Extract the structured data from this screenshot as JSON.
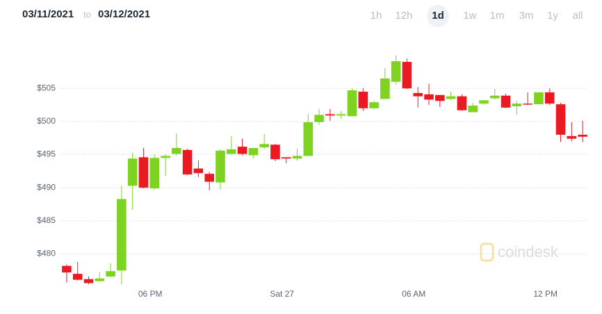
{
  "header": {
    "from": "03/11/2021",
    "to_word": "to",
    "to": "03/12/2021",
    "ranges": [
      "1h",
      "12h",
      "1d",
      "1w",
      "1m",
      "3m",
      "1y",
      "all"
    ],
    "selected": "1d"
  },
  "chart_data": {
    "type": "candlestick",
    "watermark": "coindesk",
    "categories": [
      null,
      null,
      null,
      null,
      null,
      null,
      null,
      null,
      "06 PM",
      null,
      null,
      null,
      null,
      null,
      null,
      null,
      null,
      null,
      null,
      null,
      "Sat 27",
      null,
      null,
      null,
      null,
      null,
      null,
      null,
      null,
      null,
      null,
      null,
      "06 AM",
      null,
      null,
      null,
      null,
      null,
      null,
      null,
      null,
      null,
      null,
      null,
      "12 PM",
      null,
      null,
      null
    ],
    "open": [
      478.2,
      477.0,
      476.2,
      475.9,
      476.6,
      477.5,
      490.3,
      494.6,
      489.9,
      494.5,
      495.1,
      495.7,
      492.9,
      492.1,
      490.8,
      495.1,
      496.2,
      494.9,
      496.1,
      496.5,
      494.6,
      494.4,
      494.8,
      499.9,
      501.1,
      500.9,
      500.8,
      504.5,
      502.0,
      503.4,
      506.0,
      509.0,
      504.3,
      504.1,
      504.0,
      503.4,
      503.8,
      501.4,
      502.7,
      503.5,
      503.9,
      502.3,
      502.7,
      502.6,
      504.4,
      502.6,
      497.8,
      498.0
    ],
    "high": [
      478.4,
      478.8,
      476.6,
      477.3,
      478.6,
      490.3,
      495.3,
      496.0,
      495.0,
      495.1,
      498.2,
      495.9,
      494.1,
      492.4,
      495.8,
      497.8,
      497.4,
      496.0,
      498.1,
      496.6,
      494.6,
      495.9,
      501.1,
      501.9,
      501.9,
      501.6,
      505.0,
      505.0,
      503.1,
      508.1,
      510.0,
      509.5,
      505.2,
      505.7,
      504.0,
      504.5,
      504.1,
      502.8,
      503.2,
      504.9,
      504.2,
      503.1,
      504.4,
      504.4,
      505.0,
      502.8,
      499.9,
      500.1
    ],
    "low": [
      475.7,
      476.0,
      475.4,
      475.8,
      476.5,
      475.4,
      486.7,
      489.9,
      489.7,
      491.8,
      494.9,
      491.9,
      491.6,
      489.6,
      489.7,
      495.0,
      494.9,
      494.4,
      495.8,
      494.0,
      493.7,
      494.1,
      494.8,
      499.5,
      500.1,
      500.4,
      500.8,
      501.6,
      501.9,
      503.4,
      505.6,
      504.9,
      502.1,
      502.5,
      502.2,
      503.2,
      501.6,
      501.4,
      502.5,
      503.3,
      502.0,
      501.0,
      502.5,
      502.6,
      502.5,
      496.9,
      497.0,
      496.9
    ],
    "close": [
      477.2,
      476.1,
      475.6,
      476.3,
      477.4,
      488.3,
      494.4,
      490.0,
      494.5,
      494.8,
      496.0,
      492.0,
      492.2,
      490.9,
      495.6,
      495.8,
      495.1,
      496.0,
      496.6,
      494.3,
      494.4,
      494.8,
      499.9,
      501.0,
      500.9,
      501.1,
      504.7,
      502.0,
      502.9,
      506.5,
      509.1,
      505.0,
      503.8,
      503.3,
      503.1,
      503.8,
      501.7,
      502.4,
      503.2,
      503.9,
      502.1,
      502.7,
      502.6,
      504.4,
      502.7,
      498.0,
      497.4,
      497.7
    ],
    "up_color": "#7ed321",
    "down_color": "#ea1a22",
    "ylim": [
      474.5,
      511
    ],
    "yticks": [
      {
        "value": 480,
        "label": "$480"
      },
      {
        "value": 485,
        "label": "$485"
      },
      {
        "value": 490,
        "label": "$490"
      },
      {
        "value": 495,
        "label": "$495"
      },
      {
        "value": 500,
        "label": "$500"
      },
      {
        "value": 505,
        "label": "$505"
      }
    ],
    "grid": true
  }
}
